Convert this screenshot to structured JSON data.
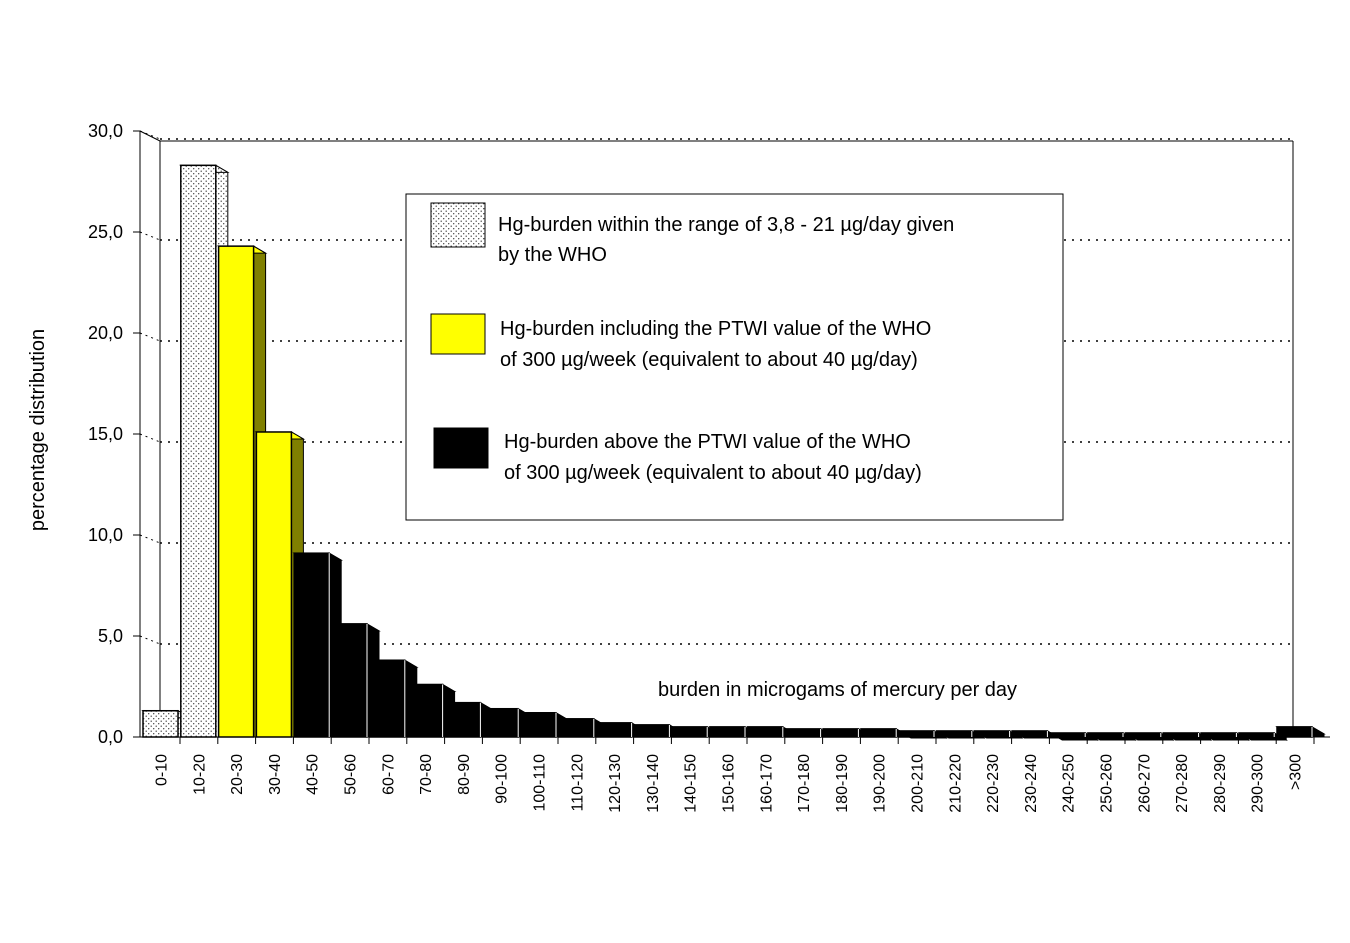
{
  "chart_data": {
    "type": "bar",
    "title": "",
    "xlabel": "",
    "ylabel": "percentage distribution",
    "ylim": [
      0,
      30
    ],
    "y_ticks": [
      "0,0",
      "5,0",
      "10,0",
      "15,0",
      "20,0",
      "25,0",
      "30,0"
    ],
    "grid": "horizontal dotted",
    "legend_placement": "top-center",
    "annotation": "burden in microgams of mercury per day",
    "categories": [
      "0-10",
      "10-20",
      "20-30",
      "30-40",
      "40-50",
      "50-60",
      "60-70",
      "70-80",
      "80-90",
      "90-100",
      "100-110",
      "110-120",
      "120-130",
      "130-140",
      "140-150",
      "150-160",
      "160-170",
      "170-180",
      "180-190",
      "190-200",
      "200-210",
      "210-220",
      "220-230",
      "230-240",
      "240-250",
      "250-260",
      "260-270",
      "270-280",
      "280-290",
      "290-300",
      ">300"
    ],
    "values": [
      1.3,
      28.3,
      24.3,
      15.1,
      9.1,
      5.6,
      3.8,
      2.6,
      1.7,
      1.4,
      1.2,
      0.9,
      0.7,
      0.6,
      0.5,
      0.5,
      0.5,
      0.4,
      0.4,
      0.4,
      0.3,
      0.3,
      0.3,
      0.3,
      0.2,
      0.2,
      0.2,
      0.2,
      0.2,
      0.2,
      0.5
    ],
    "groups": [
      "who",
      "who",
      "ptwi",
      "ptwi",
      "above",
      "above",
      "above",
      "above",
      "above",
      "above",
      "above",
      "above",
      "above",
      "above",
      "above",
      "above",
      "above",
      "above",
      "above",
      "above",
      "above",
      "above",
      "above",
      "above",
      "above",
      "above",
      "above",
      "above",
      "above",
      "above",
      "above"
    ],
    "legend": [
      {
        "key": "who",
        "label_line1": "Hg-burden within the range of 3,8 - 21 µg/day given",
        "label_line2": "by the WHO"
      },
      {
        "key": "ptwi",
        "label_line1": "Hg-burden including the PTWI value of the WHO",
        "label_line2": "of 300 µg/week (equivalent to about 40 µg/day)"
      },
      {
        "key": "above",
        "label_line1": "Hg-burden above the PTWI value of the WHO",
        "label_line2": "of 300 µg/week (equivalent to about 40 µg/day)"
      }
    ]
  },
  "colors": {
    "who_fill": "#ffffff",
    "ptwi_fill": "#ffff00",
    "ptwi_side": "#808000",
    "above_fill": "#000000",
    "grid": "#000000"
  }
}
